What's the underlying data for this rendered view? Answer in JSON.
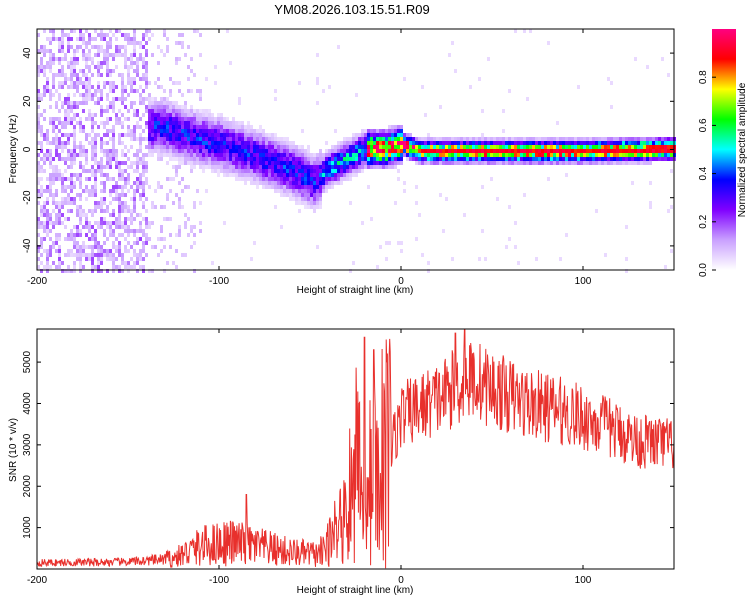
{
  "title": "YM08.2026.103.15.51.R09",
  "colors": {
    "trace": "#e8302c",
    "background": "#ffffff",
    "axes": "#000000"
  },
  "chart_data": [
    {
      "type": "heatmap",
      "name": "spectrogram",
      "xlabel": "Height of straight line (km)",
      "ylabel": "Frequency (Hz)",
      "xlim": [
        -200,
        150
      ],
      "ylim": [
        -50,
        50
      ],
      "x_ticks": [
        "-200",
        "-100",
        "0",
        "100"
      ],
      "y_ticks": [
        "-40",
        "-20",
        "0",
        "20",
        "40"
      ],
      "colorbar": {
        "label": "Normalized spectral amplitude",
        "range": [
          0.0,
          1.0
        ],
        "ticks": [
          "0.0",
          "0.2",
          "0.4",
          "0.6",
          "0.8"
        ],
        "colormap": [
          "#ffffff",
          "#c9a0ff",
          "#8000ff",
          "#0000ff",
          "#00ffff",
          "#00ff00",
          "#ffff00",
          "#ff0000",
          "#ff0080"
        ]
      },
      "description_values": {
        "signal_center_freq_hz": [
          {
            "x": -130,
            "f": 10
          },
          {
            "x": -120,
            "f": 7
          },
          {
            "x": -100,
            "f": 3
          },
          {
            "x": -80,
            "f": -2
          },
          {
            "x": -60,
            "f": -8
          },
          {
            "x": -48,
            "f": -13
          },
          {
            "x": -42,
            "f": -8
          },
          {
            "x": -30,
            "f": -3
          },
          {
            "x": -20,
            "f": 1
          },
          {
            "x": -10,
            "f": 1
          },
          {
            "x": 0,
            "f": 3
          },
          {
            "x": 10,
            "f": 0
          },
          {
            "x": 50,
            "f": 0
          },
          {
            "x": 100,
            "f": 0
          },
          {
            "x": 150,
            "f": 1
          }
        ]
      }
    },
    {
      "type": "line",
      "name": "snr",
      "xlabel": "Height of straight line (km)",
      "ylabel": "SNR (10 * v/v)",
      "xlim": [
        -200,
        150
      ],
      "ylim": [
        0,
        5800
      ],
      "x_ticks": [
        "-200",
        "-100",
        "0",
        "100"
      ],
      "y_ticks": [
        "1000",
        "2000",
        "3000",
        "4000",
        "5000"
      ],
      "envelope": [
        {
          "x": -200,
          "y": 150
        },
        {
          "x": -150,
          "y": 170
        },
        {
          "x": -125,
          "y": 250
        },
        {
          "x": -110,
          "y": 550
        },
        {
          "x": -95,
          "y": 650
        },
        {
          "x": -80,
          "y": 550
        },
        {
          "x": -60,
          "y": 400
        },
        {
          "x": -45,
          "y": 350
        },
        {
          "x": -38,
          "y": 700
        },
        {
          "x": -30,
          "y": 1500
        },
        {
          "x": -25,
          "y": 2500
        },
        {
          "x": -20,
          "y": 2000
        },
        {
          "x": -15,
          "y": 2600
        },
        {
          "x": -10,
          "y": 2900
        },
        {
          "x": -5,
          "y": 3000
        },
        {
          "x": 0,
          "y": 3700
        },
        {
          "x": 10,
          "y": 3900
        },
        {
          "x": 20,
          "y": 4100
        },
        {
          "x": 30,
          "y": 4400
        },
        {
          "x": 40,
          "y": 4600
        },
        {
          "x": 50,
          "y": 4350
        },
        {
          "x": 70,
          "y": 4000
        },
        {
          "x": 90,
          "y": 3800
        },
        {
          "x": 110,
          "y": 3500
        },
        {
          "x": 130,
          "y": 3100
        },
        {
          "x": 150,
          "y": 3000
        }
      ],
      "peaks": [
        {
          "x": -85,
          "y": 1800
        },
        {
          "x": -20,
          "y": 5600
        },
        {
          "x": -15,
          "y": 5300
        },
        {
          "x": 30,
          "y": 5700
        },
        {
          "x": 35,
          "y": 5800
        }
      ]
    }
  ]
}
